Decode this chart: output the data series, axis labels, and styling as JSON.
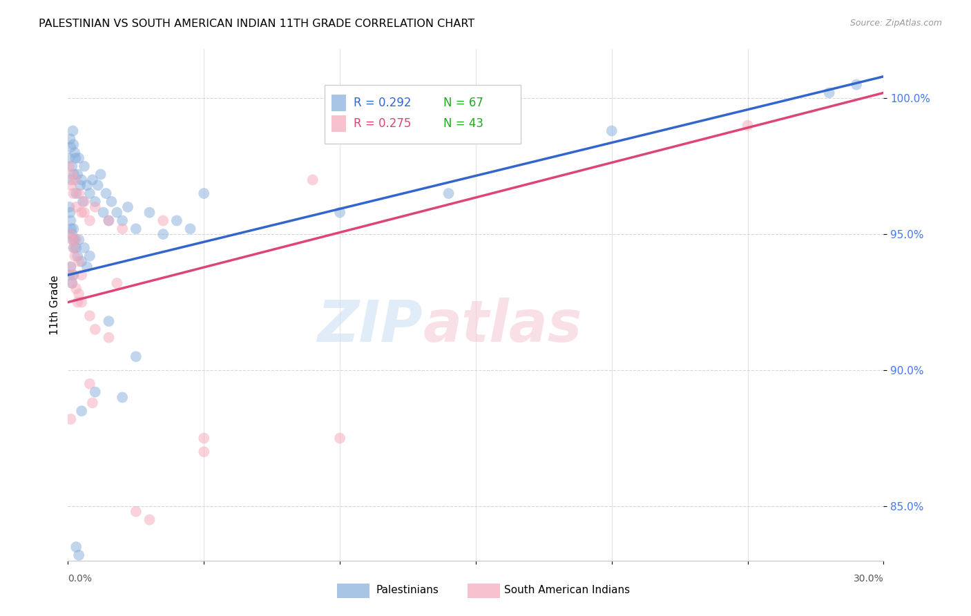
{
  "title": "PALESTINIAN VS SOUTH AMERICAN INDIAN 11TH GRADE CORRELATION CHART",
  "source": "Source: ZipAtlas.com",
  "ylabel": "11th Grade",
  "yticks": [
    85.0,
    90.0,
    95.0,
    100.0
  ],
  "ytick_labels": [
    "85.0%",
    "90.0%",
    "95.0%",
    "100.0%"
  ],
  "xmin": 0.0,
  "xmax": 30.0,
  "ymin": 83.0,
  "ymax": 101.8,
  "legend_blue_r": "R = 0.292",
  "legend_blue_n": "N = 67",
  "legend_pink_r": "R = 0.275",
  "legend_pink_n": "N = 43",
  "blue_color": "#85ADDB",
  "pink_color": "#F4A7B9",
  "blue_line_color": "#3366CC",
  "pink_line_color": "#DD4477",
  "blue_points": [
    [
      0.05,
      97.8
    ],
    [
      0.08,
      98.5
    ],
    [
      0.1,
      98.2
    ],
    [
      0.12,
      97.0
    ],
    [
      0.15,
      97.5
    ],
    [
      0.18,
      98.8
    ],
    [
      0.2,
      98.3
    ],
    [
      0.22,
      97.2
    ],
    [
      0.25,
      98.0
    ],
    [
      0.28,
      97.8
    ],
    [
      0.3,
      96.5
    ],
    [
      0.35,
      97.2
    ],
    [
      0.4,
      97.8
    ],
    [
      0.45,
      96.8
    ],
    [
      0.5,
      97.0
    ],
    [
      0.55,
      96.2
    ],
    [
      0.6,
      97.5
    ],
    [
      0.7,
      96.8
    ],
    [
      0.8,
      96.5
    ],
    [
      0.9,
      97.0
    ],
    [
      1.0,
      96.2
    ],
    [
      1.1,
      96.8
    ],
    [
      1.2,
      97.2
    ],
    [
      1.3,
      95.8
    ],
    [
      1.4,
      96.5
    ],
    [
      1.5,
      95.5
    ],
    [
      1.6,
      96.2
    ],
    [
      1.8,
      95.8
    ],
    [
      2.0,
      95.5
    ],
    [
      2.2,
      96.0
    ],
    [
      2.5,
      95.2
    ],
    [
      3.0,
      95.8
    ],
    [
      3.5,
      95.0
    ],
    [
      4.0,
      95.5
    ],
    [
      4.5,
      95.2
    ],
    [
      0.05,
      96.0
    ],
    [
      0.08,
      95.8
    ],
    [
      0.1,
      95.5
    ],
    [
      0.12,
      95.2
    ],
    [
      0.15,
      95.0
    ],
    [
      0.18,
      94.8
    ],
    [
      0.2,
      95.2
    ],
    [
      0.22,
      94.5
    ],
    [
      0.25,
      94.8
    ],
    [
      0.3,
      94.5
    ],
    [
      0.35,
      94.2
    ],
    [
      0.4,
      94.8
    ],
    [
      0.5,
      94.0
    ],
    [
      0.6,
      94.5
    ],
    [
      0.7,
      93.8
    ],
    [
      0.8,
      94.2
    ],
    [
      0.05,
      93.5
    ],
    [
      0.1,
      93.8
    ],
    [
      0.15,
      93.2
    ],
    [
      0.2,
      93.5
    ],
    [
      1.5,
      91.8
    ],
    [
      2.5,
      90.5
    ],
    [
      5.0,
      96.5
    ],
    [
      10.0,
      95.8
    ],
    [
      14.0,
      96.5
    ],
    [
      1.0,
      89.2
    ],
    [
      2.0,
      89.0
    ],
    [
      0.5,
      88.5
    ],
    [
      0.3,
      83.5
    ],
    [
      0.4,
      83.2
    ],
    [
      20.0,
      98.8
    ],
    [
      28.0,
      100.2
    ],
    [
      29.0,
      100.5
    ]
  ],
  "pink_points": [
    [
      0.05,
      97.5
    ],
    [
      0.1,
      96.8
    ],
    [
      0.15,
      97.2
    ],
    [
      0.2,
      96.5
    ],
    [
      0.25,
      97.0
    ],
    [
      0.3,
      96.0
    ],
    [
      0.4,
      96.5
    ],
    [
      0.5,
      95.8
    ],
    [
      0.6,
      96.2
    ],
    [
      0.8,
      95.5
    ],
    [
      1.0,
      96.0
    ],
    [
      1.5,
      95.5
    ],
    [
      2.0,
      95.2
    ],
    [
      0.1,
      95.0
    ],
    [
      0.15,
      94.8
    ],
    [
      0.2,
      94.5
    ],
    [
      0.25,
      94.2
    ],
    [
      0.3,
      94.8
    ],
    [
      0.4,
      94.0
    ],
    [
      0.5,
      93.5
    ],
    [
      0.1,
      93.8
    ],
    [
      0.15,
      93.2
    ],
    [
      0.2,
      93.5
    ],
    [
      0.3,
      93.0
    ],
    [
      0.4,
      92.8
    ],
    [
      0.5,
      92.5
    ],
    [
      0.8,
      92.0
    ],
    [
      1.0,
      91.5
    ],
    [
      1.5,
      91.2
    ],
    [
      0.8,
      89.5
    ],
    [
      0.9,
      88.8
    ],
    [
      0.1,
      88.2
    ],
    [
      2.5,
      84.8
    ],
    [
      3.0,
      84.5
    ],
    [
      5.0,
      87.5
    ],
    [
      3.5,
      95.5
    ],
    [
      9.0,
      97.0
    ],
    [
      25.0,
      99.0
    ],
    [
      1.8,
      93.2
    ],
    [
      0.6,
      95.8
    ],
    [
      0.35,
      92.5
    ],
    [
      10.0,
      87.5
    ],
    [
      5.0,
      87.0
    ]
  ],
  "blue_trend_x": [
    0.0,
    30.0
  ],
  "blue_trend_y": [
    93.5,
    100.8
  ],
  "pink_trend_x": [
    0.0,
    30.0
  ],
  "pink_trend_y": [
    92.5,
    100.2
  ]
}
